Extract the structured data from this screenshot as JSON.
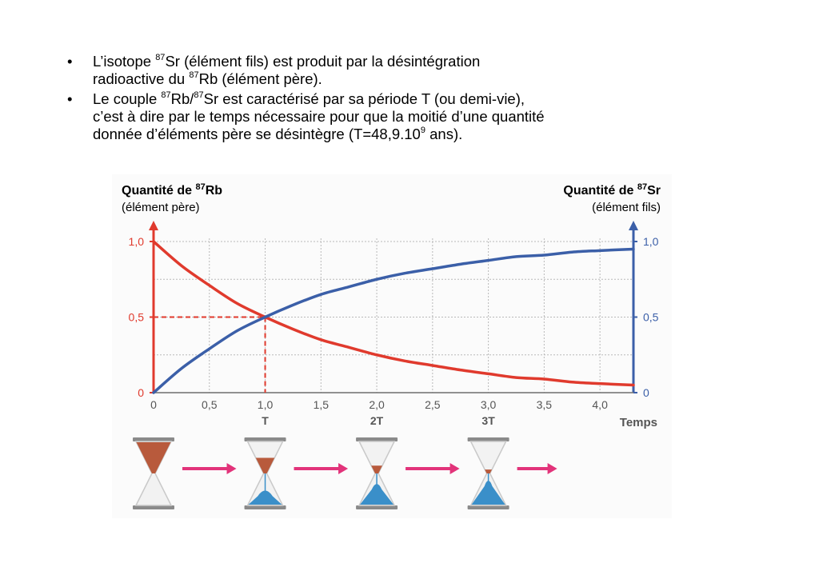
{
  "bullets": [
    {
      "line1_a": " L’isotope ",
      "line1_sup": "87",
      "line1_b": "Sr (élément fils) est produit par la désintégration",
      "line2_a": "radioactive du ",
      "line2_sup": "87",
      "line2_b": "Rb (élément père)."
    },
    {
      "line1_a": "Le couple ",
      "line1_sup1": "87",
      "line1_b": "Rb/",
      "line1_sup2": "87",
      "line1_c": "Sr est caractérisé par sa période T (ou demi-vie),",
      "line2": "c’est à dire par le temps nécessaire pour que la moitié d’une quantité",
      "line3_a": "donnée d’éléments père se désintègre (T=48,9.10",
      "line3_sup": "9",
      "line3_b": " ans)."
    }
  ],
  "chart_data": {
    "type": "line",
    "left_axis": {
      "title_a": "Quantité de ",
      "title_sup": "87",
      "title_b": "Rb",
      "subtitle": "(élément père)",
      "ticks": [
        "1,0",
        "0,5",
        "0"
      ],
      "tick_values": [
        1.0,
        0.5,
        0
      ],
      "color": "#e03a2d",
      "ylim": [
        0,
        1.0
      ]
    },
    "right_axis": {
      "title_a": "Quantité de ",
      "title_sup": "87",
      "title_b": "Sr",
      "subtitle": "(élément fils)",
      "ticks": [
        "1,0",
        "0,5",
        "0"
      ],
      "tick_values": [
        1.0,
        0.5,
        0
      ],
      "color": "#3b5fa8",
      "ylim": [
        0,
        1.0
      ]
    },
    "x_axis": {
      "label": "Temps",
      "ticks": [
        "0",
        "0,5",
        "1,0",
        "1,5",
        "2,0",
        "2,5",
        "3,0",
        "3,5",
        "4,0"
      ],
      "tick_values": [
        0,
        0.5,
        1.0,
        1.5,
        2.0,
        2.5,
        3.0,
        3.5,
        4.0
      ],
      "period_labels": [
        "T",
        "2T",
        "3T"
      ],
      "period_values": [
        1,
        2,
        3
      ],
      "xlim": [
        0,
        4.3
      ]
    },
    "grid": true,
    "half_life_marker": {
      "x": 1.0,
      "y": 0.5
    },
    "series": [
      {
        "color": "#e03a2d",
        "x": [
          0,
          0.25,
          0.5,
          0.75,
          1.0,
          1.25,
          1.5,
          1.75,
          2.0,
          2.25,
          2.5,
          2.75,
          3.0,
          3.25,
          3.5,
          3.75,
          4.0,
          4.3
        ],
        "y": [
          1.0,
          0.84,
          0.71,
          0.59,
          0.5,
          0.42,
          0.35,
          0.3,
          0.25,
          0.21,
          0.18,
          0.15,
          0.125,
          0.1,
          0.09,
          0.07,
          0.06,
          0.05
        ]
      },
      {
        "color": "#3b5fa8",
        "x": [
          0,
          0.25,
          0.5,
          0.75,
          1.0,
          1.25,
          1.5,
          1.75,
          2.0,
          2.25,
          2.5,
          2.75,
          3.0,
          3.25,
          3.5,
          3.75,
          4.0,
          4.3
        ],
        "y": [
          0,
          0.16,
          0.29,
          0.41,
          0.5,
          0.58,
          0.65,
          0.7,
          0.75,
          0.79,
          0.82,
          0.85,
          0.875,
          0.9,
          0.91,
          0.93,
          0.94,
          0.95
        ]
      }
    ],
    "hourglasses": [
      {
        "red": 1.0,
        "blue": 0.0
      },
      {
        "red": 0.5,
        "blue": 0.5
      },
      {
        "red": 0.25,
        "blue": 0.75
      },
      {
        "red": 0.125,
        "blue": 0.875
      }
    ],
    "arrow_color": "#e2337a"
  }
}
